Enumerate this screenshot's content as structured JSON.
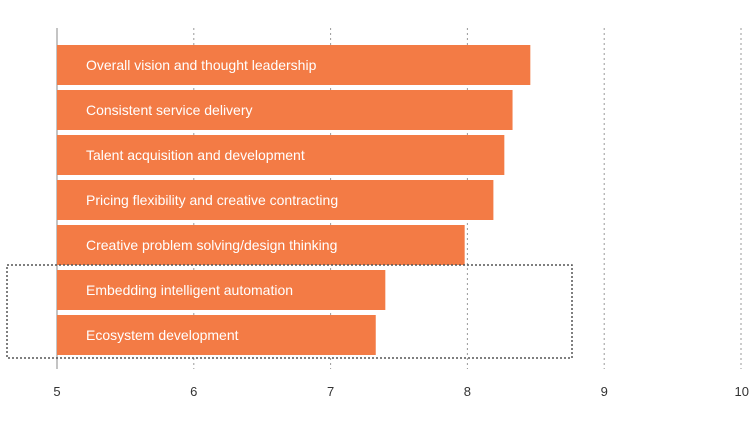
{
  "chart_data": {
    "type": "bar",
    "orientation": "horizontal",
    "categories": [
      "Overall vision and thought leadership",
      "Consistent service delivery",
      "Talent acquisition and development",
      "Pricing flexibility and creative contracting",
      "Creative problem solving/design thinking",
      "Embedding intelligent automation",
      "Ecosystem development"
    ],
    "values": [
      8.46,
      8.33,
      8.27,
      8.19,
      7.98,
      7.4,
      7.33
    ],
    "xlim": [
      5,
      10
    ],
    "ticks": [
      "5",
      "6",
      "7",
      "8",
      "9",
      "10"
    ],
    "grid": "vertical dotted",
    "highlighted_categories": [
      "Embedding intelligent automation",
      "Ecosystem development"
    ],
    "bar_color": "#f37b45",
    "grid_color": "#9a9a9a",
    "highlight_box_color": "#555555"
  }
}
